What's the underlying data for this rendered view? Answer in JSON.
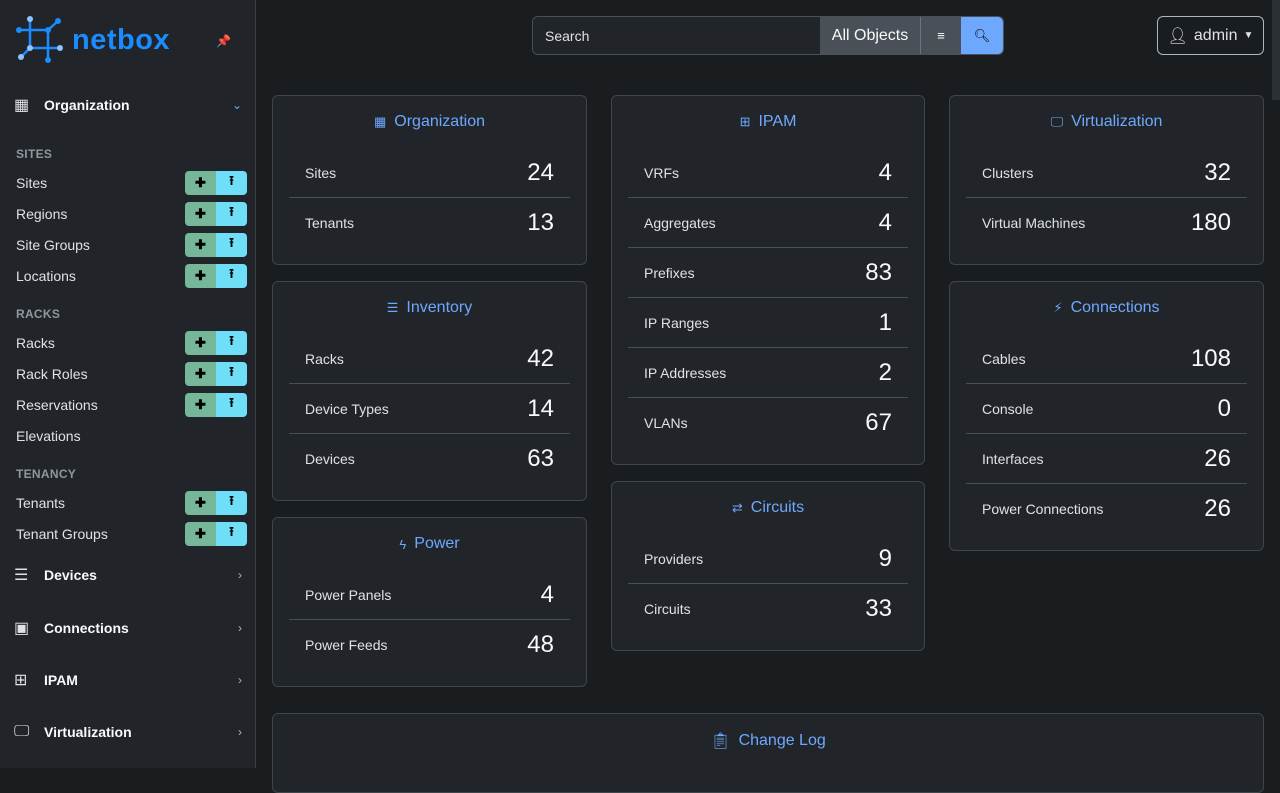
{
  "brand": "netbox",
  "colors": {
    "accent": "#6ea8fe",
    "brand": "#1a8cff",
    "add": "#75b798",
    "import": "#6edff6",
    "pin": "#ffc107"
  },
  "sidebar": {
    "organization": "Organization",
    "sections": [
      {
        "title": "SITES",
        "items": [
          {
            "label": "Sites",
            "buttons": true
          },
          {
            "label": "Regions",
            "buttons": true
          },
          {
            "label": "Site Groups",
            "buttons": true
          },
          {
            "label": "Locations",
            "buttons": true
          }
        ]
      },
      {
        "title": "RACKS",
        "items": [
          {
            "label": "Racks",
            "buttons": true
          },
          {
            "label": "Rack Roles",
            "buttons": true
          },
          {
            "label": "Reservations",
            "buttons": true
          },
          {
            "label": "Elevations",
            "buttons": false
          }
        ]
      },
      {
        "title": "TENANCY",
        "items": [
          {
            "label": "Tenants",
            "buttons": true
          },
          {
            "label": "Tenant Groups",
            "buttons": true
          }
        ]
      }
    ],
    "menus": [
      {
        "label": "Devices",
        "icon": "server-icon"
      },
      {
        "label": "Connections",
        "icon": "ethernet-icon"
      },
      {
        "label": "IPAM",
        "icon": "counter-icon"
      },
      {
        "label": "Virtualization",
        "icon": "monitor-icon"
      }
    ]
  },
  "search": {
    "placeholder": "Search",
    "scope": "All Objects"
  },
  "user": {
    "name": "admin"
  },
  "cards": {
    "organization": {
      "title": "Organization",
      "rows": [
        {
          "label": "Sites",
          "value": "24"
        },
        {
          "label": "Tenants",
          "value": "13"
        }
      ]
    },
    "inventory": {
      "title": "Inventory",
      "rows": [
        {
          "label": "Racks",
          "value": "42"
        },
        {
          "label": "Device Types",
          "value": "14"
        },
        {
          "label": "Devices",
          "value": "63"
        }
      ]
    },
    "power": {
      "title": "Power",
      "rows": [
        {
          "label": "Power Panels",
          "value": "4"
        },
        {
          "label": "Power Feeds",
          "value": "48"
        }
      ]
    },
    "ipam": {
      "title": "IPAM",
      "rows": [
        {
          "label": "VRFs",
          "value": "4"
        },
        {
          "label": "Aggregates",
          "value": "4"
        },
        {
          "label": "Prefixes",
          "value": "83"
        },
        {
          "label": "IP Ranges",
          "value": "1"
        },
        {
          "label": "IP Addresses",
          "value": "2"
        },
        {
          "label": "VLANs",
          "value": "67"
        }
      ]
    },
    "circuits": {
      "title": "Circuits",
      "rows": [
        {
          "label": "Providers",
          "value": "9"
        },
        {
          "label": "Circuits",
          "value": "33"
        }
      ]
    },
    "virtualization": {
      "title": "Virtualization",
      "rows": [
        {
          "label": "Clusters",
          "value": "32"
        },
        {
          "label": "Virtual Machines",
          "value": "180"
        }
      ]
    },
    "connections": {
      "title": "Connections",
      "rows": [
        {
          "label": "Cables",
          "value": "108"
        },
        {
          "label": "Console",
          "value": "0"
        },
        {
          "label": "Interfaces",
          "value": "26"
        },
        {
          "label": "Power Connections",
          "value": "26"
        }
      ]
    }
  },
  "changelog": {
    "title": "Change Log"
  }
}
